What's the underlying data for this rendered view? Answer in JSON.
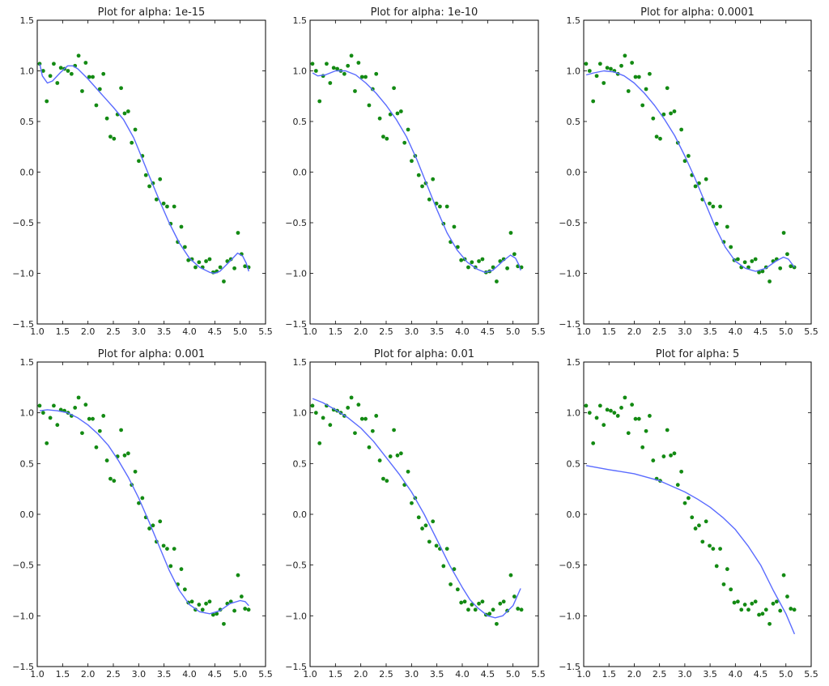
{
  "chart_data": {
    "type": "line+scatter",
    "layout": "2x3 grid",
    "grid": false,
    "xlim": [
      1.0,
      5.5
    ],
    "ylim": [
      -1.5,
      1.5
    ],
    "x_tick_labels": [
      "1.0",
      "1.5",
      "2.0",
      "2.5",
      "3.0",
      "3.5",
      "4.0",
      "4.5",
      "5.0",
      "5.5"
    ],
    "y_tick_labels": [
      "−1.5",
      "−1.0",
      "−0.5",
      "0.0",
      "0.5",
      "1.0",
      "1.5"
    ],
    "colors": {
      "scatter": "#138a13",
      "line": "#5a6bff"
    },
    "scatter": {
      "x": [
        1.047,
        1.117,
        1.187,
        1.257,
        1.326,
        1.396,
        1.466,
        1.536,
        1.606,
        1.676,
        1.745,
        1.815,
        1.885,
        1.955,
        2.025,
        2.094,
        2.164,
        2.234,
        2.304,
        2.374,
        2.443,
        2.513,
        2.583,
        2.653,
        2.723,
        2.793,
        2.862,
        2.932,
        3.002,
        3.072,
        3.142,
        3.211,
        3.281,
        3.351,
        3.421,
        3.491,
        3.56,
        3.63,
        3.7,
        3.77,
        3.84,
        3.91,
        3.979,
        4.049,
        4.119,
        4.189,
        4.259,
        4.328,
        4.398,
        4.468,
        4.538,
        4.608,
        4.677,
        4.747,
        4.817,
        4.887,
        4.957,
        5.027,
        5.096,
        5.166
      ],
      "y": [
        1.07,
        1.0,
        0.7,
        0.95,
        1.07,
        0.88,
        1.03,
        1.02,
        1.0,
        0.97,
        1.05,
        1.15,
        0.8,
        1.08,
        0.94,
        0.94,
        0.66,
        0.82,
        0.97,
        0.53,
        0.35,
        0.33,
        0.57,
        0.83,
        0.58,
        0.6,
        0.29,
        0.42,
        0.11,
        0.16,
        -0.03,
        -0.14,
        -0.11,
        -0.27,
        -0.07,
        -0.31,
        -0.34,
        -0.51,
        -0.34,
        -0.69,
        -0.54,
        -0.74,
        -0.87,
        -0.86,
        -0.94,
        -0.89,
        -0.94,
        -0.88,
        -0.86,
        -0.99,
        -0.98,
        -0.94,
        -1.08,
        -0.88,
        -0.86,
        -0.95,
        -0.6,
        -0.81,
        -0.93,
        -0.94
      ]
    },
    "subplots": [
      {
        "title": "Plot for alpha: 1e-15",
        "curve": [
          [
            1.05,
            1.07
          ],
          [
            1.1,
            0.95
          ],
          [
            1.2,
            0.88
          ],
          [
            1.3,
            0.9
          ],
          [
            1.45,
            0.98
          ],
          [
            1.6,
            1.05
          ],
          [
            1.7,
            1.05
          ],
          [
            1.8,
            1.02
          ],
          [
            2.0,
            0.92
          ],
          [
            2.25,
            0.78
          ],
          [
            2.5,
            0.64
          ],
          [
            2.7,
            0.52
          ],
          [
            2.9,
            0.34
          ],
          [
            3.0,
            0.22
          ],
          [
            3.2,
            -0.03
          ],
          [
            3.4,
            -0.27
          ],
          [
            3.6,
            -0.5
          ],
          [
            3.8,
            -0.7
          ],
          [
            4.0,
            -0.85
          ],
          [
            4.2,
            -0.94
          ],
          [
            4.4,
            -0.99
          ],
          [
            4.5,
            -1.0
          ],
          [
            4.6,
            -0.98
          ],
          [
            4.8,
            -0.88
          ],
          [
            4.95,
            -0.8
          ],
          [
            5.05,
            -0.83
          ],
          [
            5.12,
            -0.9
          ],
          [
            5.17,
            -0.98
          ]
        ]
      },
      {
        "title": "Plot for alpha: 1e-10",
        "curve": [
          [
            1.05,
            0.98
          ],
          [
            1.15,
            0.95
          ],
          [
            1.3,
            0.96
          ],
          [
            1.5,
            1.0
          ],
          [
            1.7,
            1.0
          ],
          [
            1.9,
            0.96
          ],
          [
            2.1,
            0.88
          ],
          [
            2.3,
            0.78
          ],
          [
            2.5,
            0.66
          ],
          [
            2.7,
            0.52
          ],
          [
            2.9,
            0.35
          ],
          [
            3.1,
            0.13
          ],
          [
            3.3,
            -0.12
          ],
          [
            3.5,
            -0.37
          ],
          [
            3.7,
            -0.6
          ],
          [
            3.9,
            -0.77
          ],
          [
            4.1,
            -0.89
          ],
          [
            4.3,
            -0.96
          ],
          [
            4.45,
            -0.99
          ],
          [
            4.6,
            -0.97
          ],
          [
            4.8,
            -0.88
          ],
          [
            4.95,
            -0.82
          ],
          [
            5.05,
            -0.85
          ],
          [
            5.12,
            -0.92
          ],
          [
            5.15,
            -0.97
          ]
        ]
      },
      {
        "title": "Plot for alpha: 0.0001",
        "curve": [
          [
            1.05,
            0.96
          ],
          [
            1.2,
            0.98
          ],
          [
            1.4,
            1.0
          ],
          [
            1.6,
            0.99
          ],
          [
            1.8,
            0.95
          ],
          [
            2.0,
            0.88
          ],
          [
            2.2,
            0.78
          ],
          [
            2.4,
            0.66
          ],
          [
            2.6,
            0.52
          ],
          [
            2.8,
            0.36
          ],
          [
            3.0,
            0.16
          ],
          [
            3.2,
            -0.06
          ],
          [
            3.4,
            -0.3
          ],
          [
            3.6,
            -0.54
          ],
          [
            3.8,
            -0.74
          ],
          [
            4.0,
            -0.88
          ],
          [
            4.2,
            -0.95
          ],
          [
            4.4,
            -0.98
          ],
          [
            4.6,
            -0.95
          ],
          [
            4.8,
            -0.88
          ],
          [
            4.95,
            -0.84
          ],
          [
            5.05,
            -0.86
          ],
          [
            5.17,
            -0.94
          ]
        ]
      },
      {
        "title": "Plot for alpha: 0.001",
        "curve": [
          [
            1.05,
            1.02
          ],
          [
            1.2,
            1.03
          ],
          [
            1.4,
            1.02
          ],
          [
            1.6,
            1.0
          ],
          [
            1.8,
            0.95
          ],
          [
            2.0,
            0.88
          ],
          [
            2.2,
            0.79
          ],
          [
            2.4,
            0.68
          ],
          [
            2.6,
            0.53
          ],
          [
            2.8,
            0.36
          ],
          [
            3.0,
            0.16
          ],
          [
            3.2,
            -0.07
          ],
          [
            3.4,
            -0.31
          ],
          [
            3.6,
            -0.55
          ],
          [
            3.8,
            -0.75
          ],
          [
            4.0,
            -0.89
          ],
          [
            4.2,
            -0.96
          ],
          [
            4.4,
            -0.98
          ],
          [
            4.6,
            -0.95
          ],
          [
            4.8,
            -0.88
          ],
          [
            5.0,
            -0.85
          ],
          [
            5.1,
            -0.86
          ],
          [
            5.17,
            -0.9
          ]
        ]
      },
      {
        "title": "Plot for alpha: 0.01",
        "curve": [
          [
            1.05,
            1.14
          ],
          [
            1.25,
            1.1
          ],
          [
            1.5,
            1.03
          ],
          [
            1.75,
            0.95
          ],
          [
            2.0,
            0.85
          ],
          [
            2.25,
            0.72
          ],
          [
            2.5,
            0.56
          ],
          [
            2.75,
            0.4
          ],
          [
            3.0,
            0.22
          ],
          [
            3.25,
            0.0
          ],
          [
            3.5,
            -0.25
          ],
          [
            3.75,
            -0.5
          ],
          [
            4.0,
            -0.72
          ],
          [
            4.15,
            -0.84
          ],
          [
            4.3,
            -0.92
          ],
          [
            4.5,
            -1.0
          ],
          [
            4.65,
            -1.02
          ],
          [
            4.8,
            -1.0
          ],
          [
            5.0,
            -0.9
          ],
          [
            5.15,
            -0.73
          ]
        ]
      },
      {
        "title": "Plot for alpha: 5",
        "curve": [
          [
            1.05,
            0.48
          ],
          [
            1.5,
            0.44
          ],
          [
            2.0,
            0.4
          ],
          [
            2.5,
            0.33
          ],
          [
            3.0,
            0.22
          ],
          [
            3.25,
            0.15
          ],
          [
            3.5,
            0.07
          ],
          [
            3.75,
            -0.03
          ],
          [
            4.0,
            -0.15
          ],
          [
            4.25,
            -0.31
          ],
          [
            4.5,
            -0.5
          ],
          [
            4.75,
            -0.75
          ],
          [
            5.0,
            -0.98
          ],
          [
            5.17,
            -1.18
          ]
        ]
      }
    ]
  }
}
